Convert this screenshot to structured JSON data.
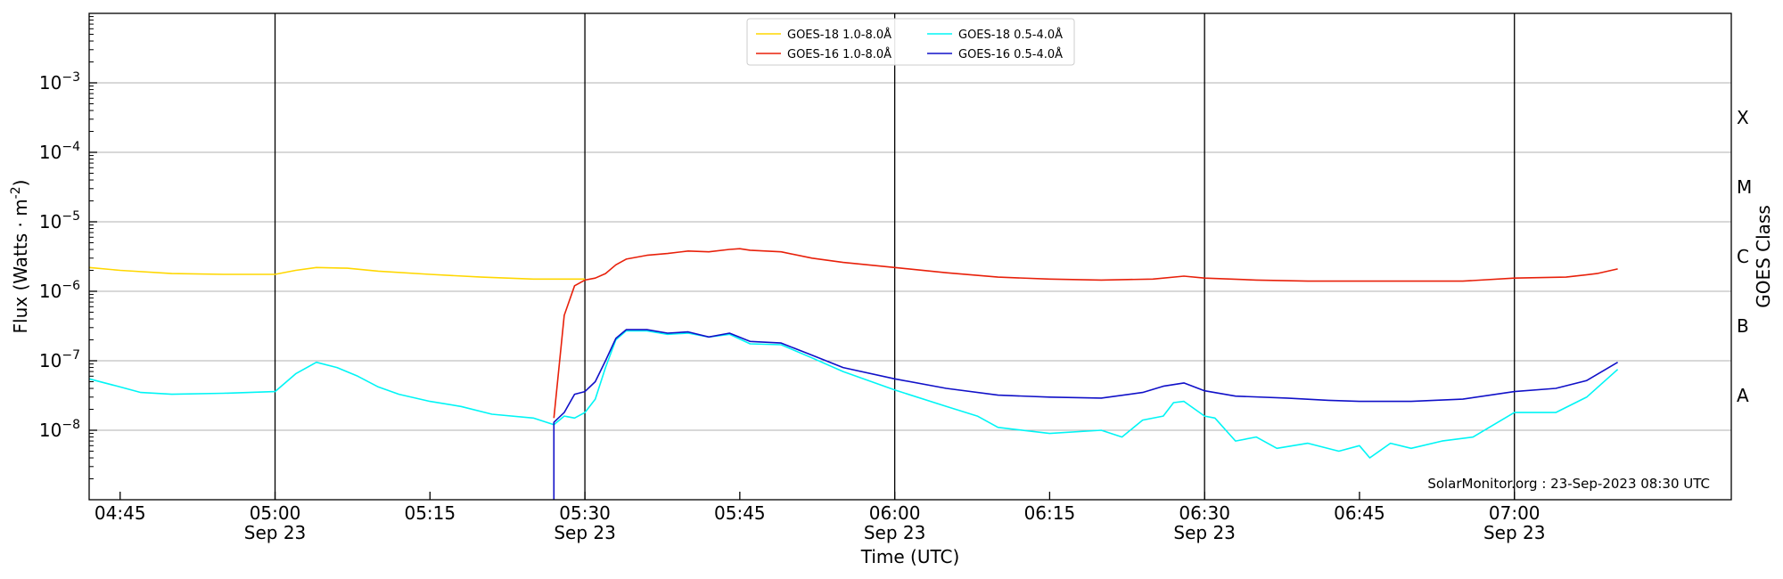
{
  "chart_data": {
    "type": "line",
    "xlabel": "Time (UTC)",
    "ylabel": "Flux (Watts · m",
    "ylabel_sup": "-2",
    "ylabel_close": ")",
    "right_label": "GOES Class",
    "annotation": "SolarMonitor.org : 23-Sep-2023 08:30 UTC",
    "x_range": [
      "04:42",
      "07:21"
    ],
    "ylim": [
      1e-09,
      0.01
    ],
    "y_scale": "log",
    "grid": "horizontal",
    "legend_position": "top-center",
    "y_ticks": [
      {
        "value": 1e-08,
        "label": "10",
        "exp": "−8"
      },
      {
        "value": 1e-07,
        "label": "10",
        "exp": "−7"
      },
      {
        "value": 1e-06,
        "label": "10",
        "exp": "−6"
      },
      {
        "value": 1e-05,
        "label": "10",
        "exp": "−5"
      },
      {
        "value": 0.0001,
        "label": "10",
        "exp": "−4"
      },
      {
        "value": 0.001,
        "label": "10",
        "exp": "−3"
      }
    ],
    "x_ticks": [
      {
        "time": "04:45",
        "label": "04:45",
        "sub": "",
        "vline": false
      },
      {
        "time": "05:00",
        "label": "05:00",
        "sub": "Sep 23",
        "vline": true
      },
      {
        "time": "05:15",
        "label": "05:15",
        "sub": "",
        "vline": false
      },
      {
        "time": "05:30",
        "label": "05:30",
        "sub": "Sep 23",
        "vline": true
      },
      {
        "time": "05:45",
        "label": "05:45",
        "sub": "",
        "vline": false
      },
      {
        "time": "06:00",
        "label": "06:00",
        "sub": "Sep 23",
        "vline": true
      },
      {
        "time": "06:15",
        "label": "06:15",
        "sub": "",
        "vline": false
      },
      {
        "time": "06:30",
        "label": "06:30",
        "sub": "Sep 23",
        "vline": true
      },
      {
        "time": "06:45",
        "label": "06:45",
        "sub": "",
        "vline": false
      },
      {
        "time": "07:00",
        "label": "07:00",
        "sub": "Sep 23",
        "vline": true
      }
    ],
    "classes": [
      {
        "label": "A",
        "value": 3.16e-08
      },
      {
        "label": "B",
        "value": 3.16e-07
      },
      {
        "label": "C",
        "value": 3.16e-06
      },
      {
        "label": "M",
        "value": 3.16e-05
      },
      {
        "label": "X",
        "value": 0.000316
      }
    ],
    "series": [
      {
        "name": "GOES-18 1.0-8.0Å",
        "color": "#ffd700",
        "points": [
          [
            "04:42",
            2.2e-06
          ],
          [
            "04:45",
            2e-06
          ],
          [
            "04:50",
            1.8e-06
          ],
          [
            "04:55",
            1.75e-06
          ],
          [
            "05:00",
            1.75e-06
          ],
          [
            "05:02",
            2e-06
          ],
          [
            "05:04",
            2.2e-06
          ],
          [
            "05:07",
            2.15e-06
          ],
          [
            "05:10",
            1.95e-06
          ],
          [
            "05:15",
            1.75e-06
          ],
          [
            "05:20",
            1.6e-06
          ],
          [
            "05:25",
            1.5e-06
          ],
          [
            "05:28",
            1.5e-06
          ],
          [
            "05:30",
            1.5e-06
          ]
        ]
      },
      {
        "name": "GOES-16 1.0-8.0Å",
        "color": "#e8200a",
        "points": [
          [
            "05:27",
            1.5e-08
          ],
          [
            "05:28",
            4.5e-07
          ],
          [
            "05:29",
            1.2e-06
          ],
          [
            "05:30",
            1.45e-06
          ],
          [
            "05:31",
            1.55e-06
          ],
          [
            "05:32",
            1.8e-06
          ],
          [
            "05:33",
            2.4e-06
          ],
          [
            "05:34",
            2.9e-06
          ],
          [
            "05:36",
            3.3e-06
          ],
          [
            "05:38",
            3.5e-06
          ],
          [
            "05:40",
            3.8e-06
          ],
          [
            "05:42",
            3.7e-06
          ],
          [
            "05:44",
            4e-06
          ],
          [
            "05:45",
            4.1e-06
          ],
          [
            "05:46",
            3.9e-06
          ],
          [
            "05:49",
            3.7e-06
          ],
          [
            "05:52",
            3e-06
          ],
          [
            "05:55",
            2.6e-06
          ],
          [
            "06:00",
            2.2e-06
          ],
          [
            "06:05",
            1.85e-06
          ],
          [
            "06:10",
            1.6e-06
          ],
          [
            "06:15",
            1.5e-06
          ],
          [
            "06:20",
            1.45e-06
          ],
          [
            "06:25",
            1.5e-06
          ],
          [
            "06:28",
            1.65e-06
          ],
          [
            "06:30",
            1.55e-06
          ],
          [
            "06:35",
            1.45e-06
          ],
          [
            "06:40",
            1.4e-06
          ],
          [
            "06:50",
            1.4e-06
          ],
          [
            "06:55",
            1.4e-06
          ],
          [
            "07:00",
            1.55e-06
          ],
          [
            "07:05",
            1.6e-06
          ],
          [
            "07:08",
            1.8e-06
          ],
          [
            "07:10",
            2.1e-06
          ]
        ]
      },
      {
        "name": "GOES-18 0.5-4.0Å",
        "color": "#00f5f5",
        "points": [
          [
            "04:42",
            5.5e-08
          ],
          [
            "04:45",
            4.2e-08
          ],
          [
            "04:47",
            3.5e-08
          ],
          [
            "04:50",
            3.3e-08
          ],
          [
            "04:55",
            3.4e-08
          ],
          [
            "05:00",
            3.6e-08
          ],
          [
            "05:02",
            6.5e-08
          ],
          [
            "05:04",
            9.5e-08
          ],
          [
            "05:06",
            8e-08
          ],
          [
            "05:08",
            6e-08
          ],
          [
            "05:10",
            4.2e-08
          ],
          [
            "05:12",
            3.3e-08
          ],
          [
            "05:15",
            2.6e-08
          ],
          [
            "05:18",
            2.2e-08
          ],
          [
            "05:21",
            1.7e-08
          ],
          [
            "05:25",
            1.5e-08
          ],
          [
            "05:27",
            1.2e-08
          ],
          [
            "05:28",
            1.6e-08
          ],
          [
            "05:29",
            1.5e-08
          ],
          [
            "05:30",
            1.8e-08
          ],
          [
            "05:31",
            2.8e-08
          ],
          [
            "05:32",
            8e-08
          ],
          [
            "05:33",
            2e-07
          ],
          [
            "05:34",
            2.7e-07
          ],
          [
            "05:36",
            2.7e-07
          ],
          [
            "05:38",
            2.4e-07
          ],
          [
            "05:40",
            2.5e-07
          ],
          [
            "05:42",
            2.2e-07
          ],
          [
            "05:44",
            2.4e-07
          ],
          [
            "05:46",
            1.75e-07
          ],
          [
            "05:49",
            1.7e-07
          ],
          [
            "05:52",
            1.1e-07
          ],
          [
            "05:55",
            7e-08
          ],
          [
            "06:00",
            3.8e-08
          ],
          [
            "06:05",
            2.2e-08
          ],
          [
            "06:08",
            1.6e-08
          ],
          [
            "06:10",
            1.1e-08
          ],
          [
            "06:15",
            9e-09
          ],
          [
            "06:20",
            1e-08
          ],
          [
            "06:22",
            8e-09
          ],
          [
            "06:24",
            1.4e-08
          ],
          [
            "06:26",
            1.6e-08
          ],
          [
            "06:27",
            2.5e-08
          ],
          [
            "06:28",
            2.6e-08
          ],
          [
            "06:30",
            1.6e-08
          ],
          [
            "06:31",
            1.5e-08
          ],
          [
            "06:33",
            7e-09
          ],
          [
            "06:35",
            8e-09
          ],
          [
            "06:37",
            5.5e-09
          ],
          [
            "06:40",
            6.5e-09
          ],
          [
            "06:43",
            5e-09
          ],
          [
            "06:45",
            6e-09
          ],
          [
            "06:46",
            4e-09
          ],
          [
            "06:48",
            6.5e-09
          ],
          [
            "06:50",
            5.5e-09
          ],
          [
            "06:53",
            7e-09
          ],
          [
            "06:56",
            8e-09
          ],
          [
            "06:58",
            1.2e-08
          ],
          [
            "07:00",
            1.8e-08
          ],
          [
            "07:04",
            1.8e-08
          ],
          [
            "07:07",
            3e-08
          ],
          [
            "07:10",
            7.5e-08
          ]
        ]
      },
      {
        "name": "GOES-16 0.5-4.0Å",
        "color": "#1010c8",
        "points": [
          [
            "05:27",
            1e-09
          ],
          [
            "05:27",
            1.3e-08
          ],
          [
            "05:28",
            1.8e-08
          ],
          [
            "05:29",
            3.3e-08
          ],
          [
            "05:30",
            3.6e-08
          ],
          [
            "05:31",
            5e-08
          ],
          [
            "05:32",
            1e-07
          ],
          [
            "05:33",
            2.1e-07
          ],
          [
            "05:34",
            2.8e-07
          ],
          [
            "05:36",
            2.8e-07
          ],
          [
            "05:38",
            2.5e-07
          ],
          [
            "05:40",
            2.6e-07
          ],
          [
            "05:42",
            2.2e-07
          ],
          [
            "05:44",
            2.5e-07
          ],
          [
            "05:46",
            1.9e-07
          ],
          [
            "05:49",
            1.8e-07
          ],
          [
            "05:52",
            1.2e-07
          ],
          [
            "05:55",
            8e-08
          ],
          [
            "06:00",
            5.5e-08
          ],
          [
            "06:05",
            4e-08
          ],
          [
            "06:10",
            3.2e-08
          ],
          [
            "06:15",
            3e-08
          ],
          [
            "06:20",
            2.9e-08
          ],
          [
            "06:24",
            3.5e-08
          ],
          [
            "06:26",
            4.3e-08
          ],
          [
            "06:28",
            4.8e-08
          ],
          [
            "06:30",
            3.7e-08
          ],
          [
            "06:33",
            3.1e-08
          ],
          [
            "06:38",
            2.9e-08
          ],
          [
            "06:42",
            2.7e-08
          ],
          [
            "06:45",
            2.6e-08
          ],
          [
            "06:50",
            2.6e-08
          ],
          [
            "06:55",
            2.8e-08
          ],
          [
            "07:00",
            3.6e-08
          ],
          [
            "07:04",
            4e-08
          ],
          [
            "07:07",
            5.2e-08
          ],
          [
            "07:10",
            9.5e-08
          ]
        ]
      }
    ]
  }
}
